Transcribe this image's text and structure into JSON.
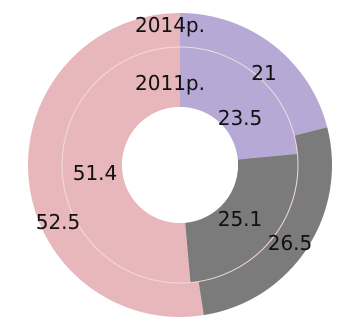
{
  "chart_data": {
    "type": "donut",
    "title": "",
    "ring_labels": [
      "2011р.",
      "2014р."
    ],
    "series": [
      {
        "name": "2011р.",
        "values": [
          23.5,
          25.1,
          51.4
        ]
      },
      {
        "name": "2014р.",
        "values": [
          21.0,
          26.5,
          52.5
        ]
      }
    ],
    "colors": [
      "#b7a9d6",
      "#7b7b7b",
      "#e8b7bc"
    ],
    "ring_separator_color": "#f4dadd"
  }
}
